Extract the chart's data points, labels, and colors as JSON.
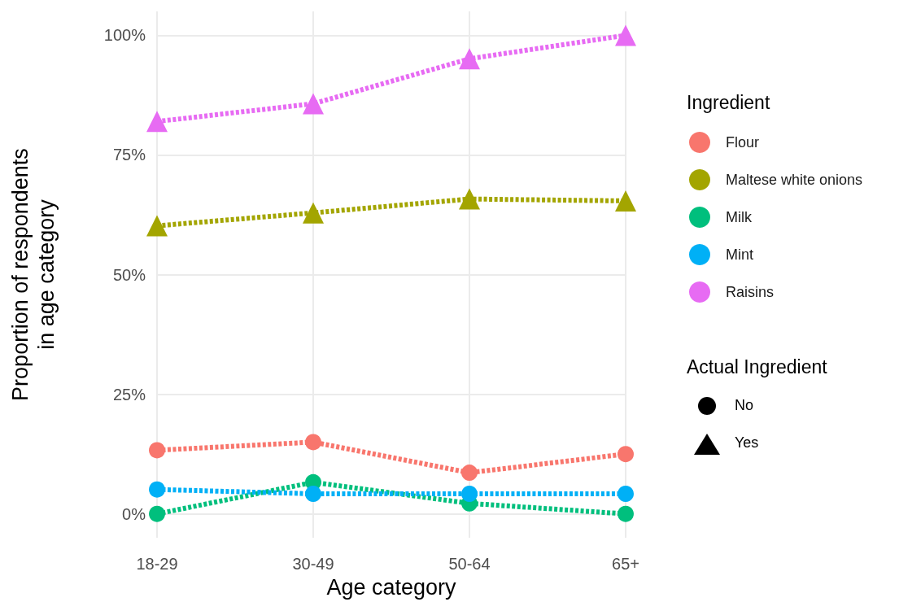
{
  "chart_data": {
    "type": "line",
    "xlabel": "Age category",
    "ylabel": "Proportion of respondents\nin age category",
    "legend_title": "Ingredient",
    "categories": [
      "18-29",
      "30-49",
      "50-64",
      "65+"
    ],
    "series": [
      {
        "name": "Flour",
        "color": "#f8766d",
        "marker": "circle",
        "values": [
          13.3,
          15,
          8.6,
          12.5
        ]
      },
      {
        "name": "Maltese white onions",
        "color": "#a3a500",
        "marker": "triangle",
        "values": [
          60.2,
          62.9,
          65.8,
          65.4
        ]
      },
      {
        "name": "Milk",
        "color": "#00bf7d",
        "marker": "circle",
        "values": [
          0,
          6.6,
          2.2,
          0
        ]
      },
      {
        "name": "Mint",
        "color": "#00b0f6",
        "marker": "circle",
        "values": [
          5.1,
          4.2,
          4.2,
          4.2
        ]
      },
      {
        "name": "Raisins",
        "color": "#e76bf3",
        "marker": "triangle",
        "values": [
          82,
          85.7,
          95.1,
          100
        ]
      }
    ],
    "ylim": [
      -5,
      105
    ],
    "yticks": [
      {
        "value": 0,
        "label": "0%"
      },
      {
        "value": 25,
        "label": "25%"
      },
      {
        "value": 50,
        "label": "50%"
      },
      {
        "value": 75,
        "label": "75%"
      },
      {
        "value": 100,
        "label": "100%"
      }
    ],
    "grid": true,
    "legend": "right",
    "line_style": "dashed",
    "annotations": [
      "Actual Ingredient",
      "No",
      "Yes"
    ]
  }
}
